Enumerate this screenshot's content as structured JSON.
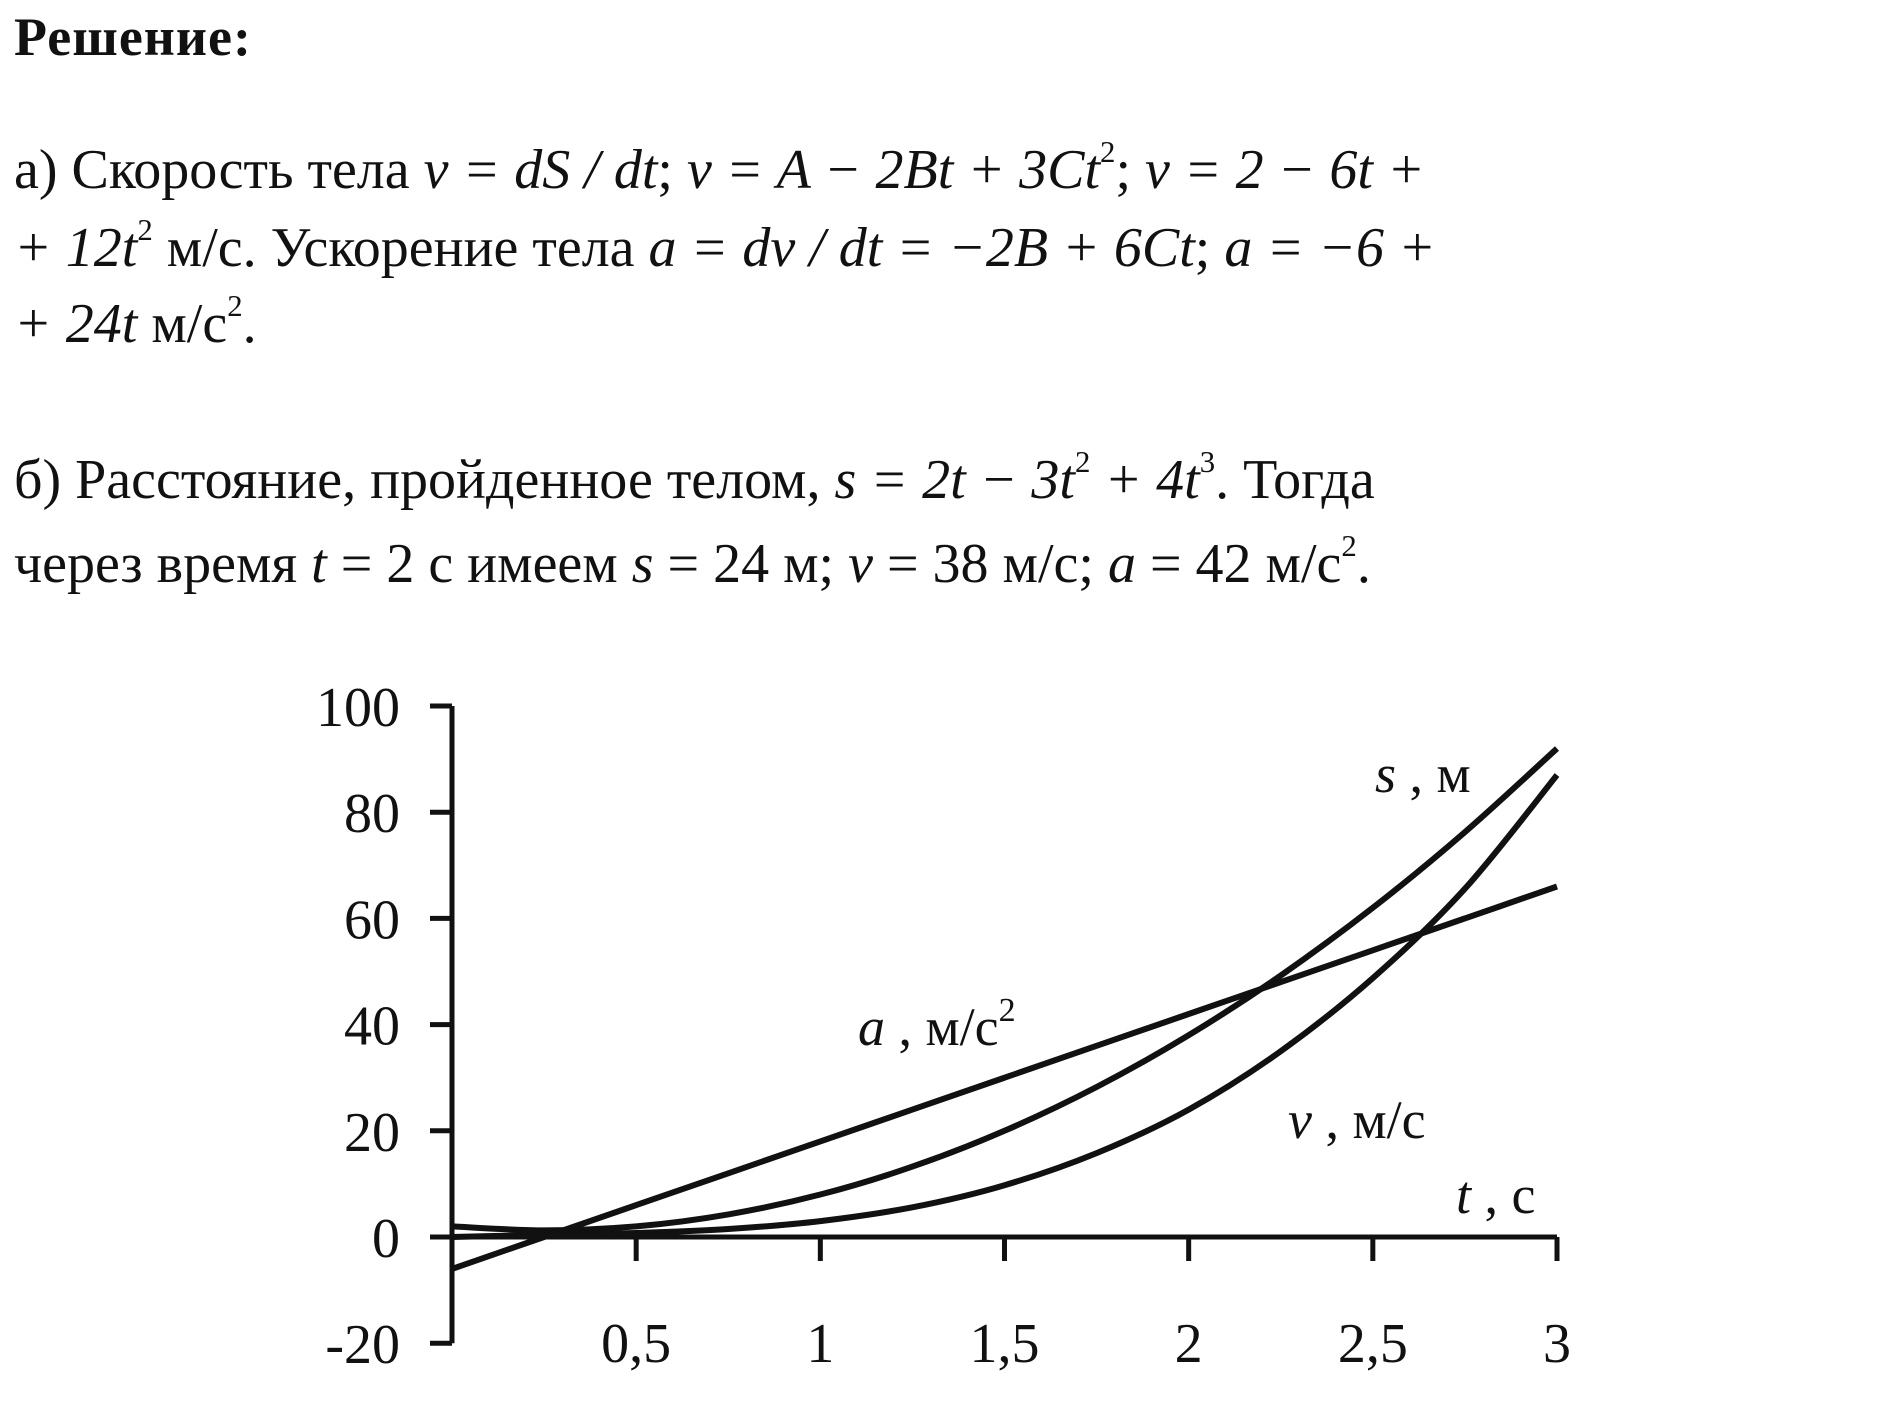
{
  "heading": "Решение:",
  "part_a": {
    "l1": {
      "t1": "а) Скорость тела ",
      "m1": "v = dS / dt",
      "t2": "; ",
      "m2": "v = A − 2Bt + 3Ct",
      "e1": "2",
      "t3": "; ",
      "m3": "v = 2 − 6t +"
    },
    "l2": {
      "m1": "+ 12t",
      "e1": "2",
      "t1": " м/с. Ускорение тела ",
      "m2": "a = dv / dt = −2B + 6Ct",
      "t2": "; ",
      "m3": "a = −6 +"
    },
    "l3": {
      "m1": "+ 24t",
      "t1": " м/с",
      "e1": "2",
      "t2": "."
    }
  },
  "part_b": {
    "l1": {
      "t1": "б) Расстояние, пройденное телом, ",
      "m1": "s = 2t − 3t",
      "e1": "2",
      "m2": " + 4t",
      "e2": "3",
      "t2": ". Тогда"
    },
    "l2": {
      "t1": "через время ",
      "m1": "t",
      "t2": " = 2 с имеем ",
      "m2": "s",
      "t3": " = 24 м; ",
      "m3": "v",
      "t4": " = 38 м/с; ",
      "m4": "a",
      "t5": " = 42 м/с",
      "e1": "2",
      "t6": "."
    }
  },
  "chart_data": {
    "type": "line",
    "ylim": [
      -20,
      100
    ],
    "xlim": [
      0,
      3
    ],
    "yticks": [
      "100",
      "80",
      "60",
      "40",
      "20",
      "0",
      "-20"
    ],
    "ytick_values": [
      100,
      80,
      60,
      40,
      20,
      0,
      -20
    ],
    "xticks": [
      "0,5",
      "1",
      "1,5",
      "2",
      "2,5",
      "3"
    ],
    "xtick_values": [
      0.5,
      1,
      1.5,
      2,
      2.5,
      3
    ],
    "xlabel": {
      "var": "t",
      "unit": " , с"
    },
    "x": [
      0,
      0.25,
      0.5,
      0.75,
      1,
      1.25,
      1.5,
      1.75,
      2,
      2.25,
      2.5,
      2.75,
      3
    ],
    "series": [
      {
        "name": "s",
        "label_var": "s",
        "label_unit": " , м",
        "label_sup": "",
        "values": [
          0,
          0.4,
          0.75,
          1.5,
          3,
          5.6,
          9.75,
          15.8,
          24,
          35,
          48.75,
          65.6,
          87
        ]
      },
      {
        "name": "v",
        "label_var": "v",
        "label_unit": " , м/с",
        "label_sup": "",
        "values": [
          2,
          1.25,
          2,
          4.25,
          8,
          13.25,
          20,
          28.25,
          38,
          49.25,
          62,
          76.25,
          92
        ]
      },
      {
        "name": "a",
        "label_var": "a",
        "label_unit": " , м/с",
        "label_sup": "2",
        "values": [
          -6,
          0,
          6,
          12,
          18,
          24,
          30,
          36,
          42,
          48,
          54,
          60,
          66
        ]
      }
    ],
    "grid": false
  }
}
